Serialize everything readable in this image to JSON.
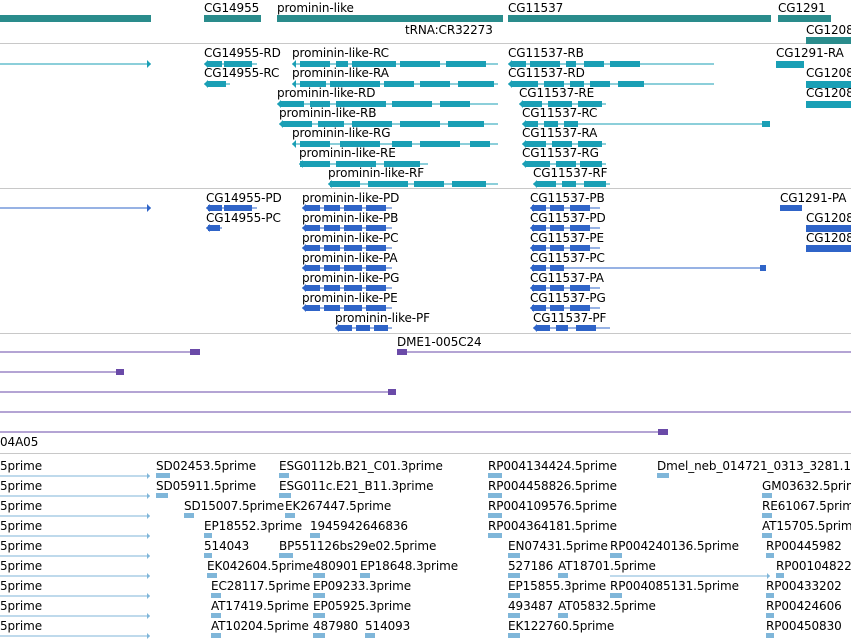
{
  "colors": {
    "gene": "#2a8c8c",
    "transcript": "#1a9fb5",
    "protein": "#2f64c8",
    "clone": "#6a4aa8",
    "est": "#7fb6d9",
    "divider": "#c8c8c8"
  },
  "gene_track": {
    "labels": [
      "CG14955",
      "prominin-like",
      "tRNA:CR32273",
      "CG11537",
      "CG1291",
      "CG1208"
    ]
  },
  "transcript_track": {
    "labels": [
      "CG14955-RD",
      "CG14955-RC",
      "prominin-like-RC",
      "prominin-like-RA",
      "prominin-like-RD",
      "prominin-like-RB",
      "prominin-like-RG",
      "prominin-like-RE",
      "prominin-like-RF",
      "CG11537-RB",
      "CG11537-RD",
      "CG11537-RE",
      "CG11537-RC",
      "CG11537-RA",
      "CG11537-RG",
      "CG11537-RF",
      "CG1291-RA",
      "CG1208",
      "CG1208"
    ]
  },
  "protein_track": {
    "labels": [
      "CG14955-PD",
      "CG14955-PC",
      "prominin-like-PD",
      "prominin-like-PB",
      "prominin-like-PC",
      "prominin-like-PA",
      "prominin-like-PG",
      "prominin-like-PE",
      "prominin-like-PF",
      "CG11537-PB",
      "CG11537-PD",
      "CG11537-PE",
      "CG11537-PC",
      "CG11537-PA",
      "CG11537-PG",
      "CG11537-PF",
      "CG1291-PA",
      "CG1208",
      "CG1208"
    ]
  },
  "clone_track": {
    "labels": [
      "DME1-005C24",
      "04A05"
    ]
  },
  "est_track": {
    "labels": [
      "5prime",
      "SD02453.5prime",
      "ESG0112b.B21_C01.3prime",
      "RP004134424.5prime",
      "Dmel_neb_014721_0313_3281.1",
      "5prime",
      "SD05911.5prime",
      "ESG011c.E21_B11.3prime",
      "RP004458826.5prime",
      "GM03632.5prime",
      "5prime",
      "SD15007.5prime",
      "EK267447.5prime",
      "RP004109576.5prime",
      "RE61067.5prime",
      "5prime",
      "EP18552.3prime",
      "1945942646836",
      "RP004364181.5prime",
      "AT15705.5prime",
      "5prime",
      "514043",
      "BP551126bs29e02.5prime",
      "EN07431.5prime",
      "RP004240136.5prime",
      "RP00445982",
      "5prime",
      "EK042604.5prime",
      "480901",
      "EP18648.3prime",
      "527186",
      "AT18701.5prime",
      "RP00104822",
      "5prime",
      "EC28117.5prime",
      "EP09233.3prime",
      "EP15855.3prime",
      "RP004085131.5prime",
      "RP00433202",
      "5prime",
      "AT17419.5prime",
      "EP05925.3prime",
      "493487",
      "AT05832.5prime",
      "RP00424606",
      "5prime",
      "AT10204.5prime",
      "487980",
      "514093",
      "EK122760.5prime",
      "RP00450830"
    ]
  }
}
